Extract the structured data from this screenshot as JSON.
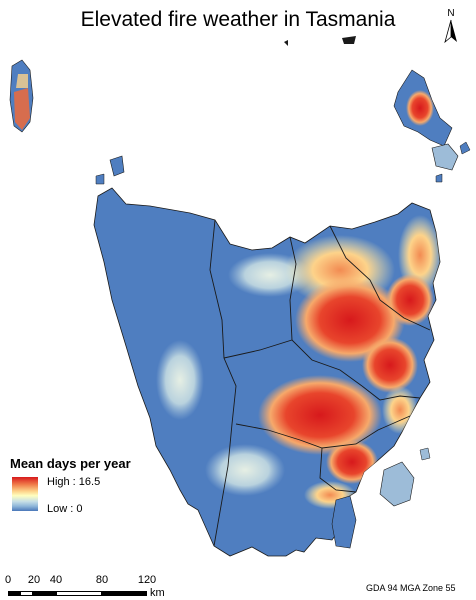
{
  "title": "Elevated fire weather in Tasmania",
  "north_arrow": {
    "letter": "N"
  },
  "legend": {
    "title": "Mean days per year",
    "high_label": "High : 16.5",
    "low_label": "Low : 0",
    "ramp_colors": [
      "#d7191c",
      "#f07c4a",
      "#fdd38a",
      "#ffffc0",
      "#8eb6d9",
      "#4a77b8"
    ]
  },
  "scale_bar": {
    "ticks": [
      "0",
      "20",
      "40",
      "80",
      "120"
    ],
    "unit": "km"
  },
  "projection": "GDA 94 MGA Zone 55",
  "colors": {
    "land_base": "#4f7ec0",
    "hot": "#d7191c",
    "warm": "#f29a64",
    "mid": "#fff3b5",
    "cool": "#b8d2df"
  }
}
